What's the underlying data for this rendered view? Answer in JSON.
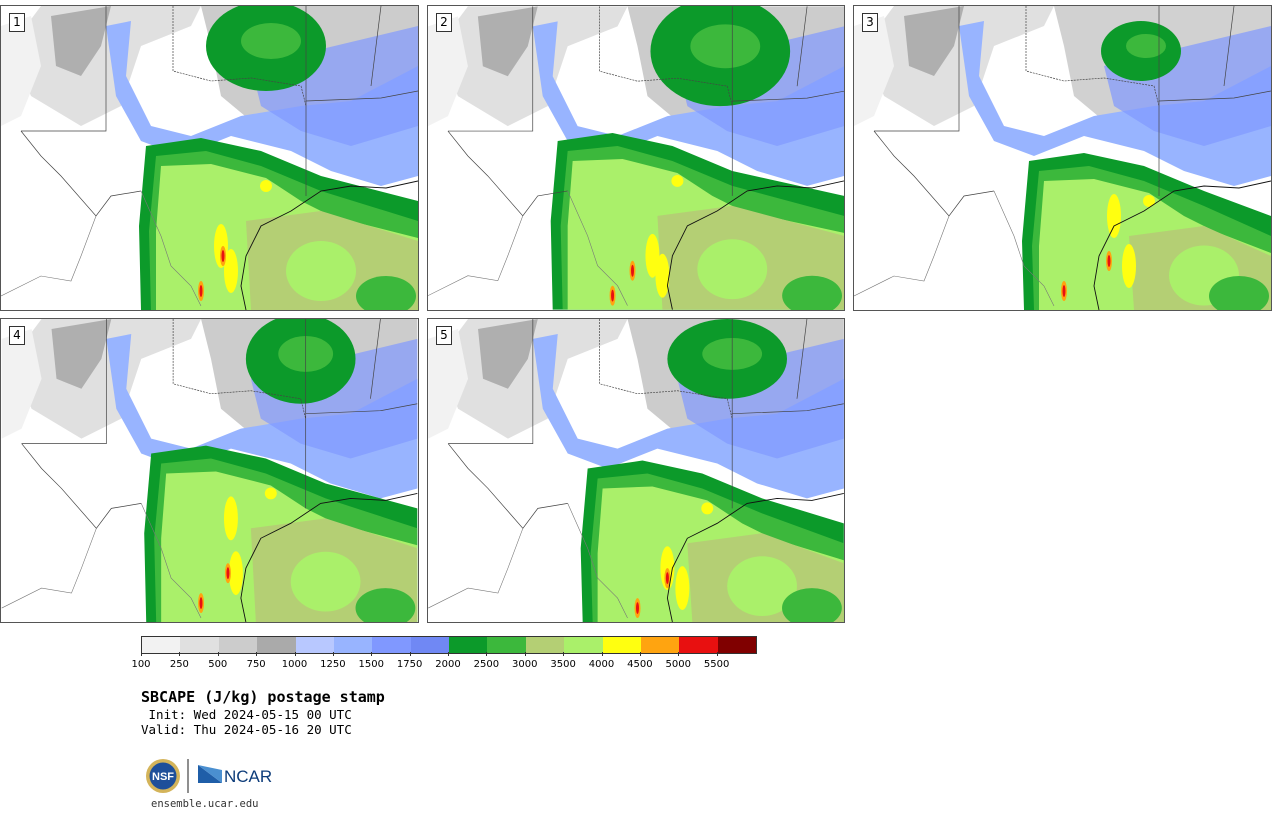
{
  "panels": [
    {
      "label": "1"
    },
    {
      "label": "2"
    },
    {
      "label": "3"
    },
    {
      "label": "4"
    },
    {
      "label": "5"
    }
  ],
  "colorbar": {
    "colors": [
      "#f2f2f2",
      "#e0e0e0",
      "#cccccc",
      "#aaaaaa",
      "#b8c8ff",
      "#98b4ff",
      "#8098ff",
      "#7088f4",
      "#0c9a2a",
      "#3cb83c",
      "#b4cf74",
      "#aaf06a",
      "#ffff10",
      "#ffa410",
      "#e81010",
      "#800000"
    ],
    "tick_labels": [
      "100",
      "250",
      "500",
      "750",
      "1000",
      "1250",
      "1500",
      "1750",
      "2000",
      "2500",
      "3000",
      "3500",
      "4000",
      "4500",
      "5000",
      "5500"
    ]
  },
  "title": "SBCAPE (J/kg) postage stamp",
  "init": " Init: Wed 2024-05-15 00 UTC",
  "valid": "Valid: Thu 2024-05-16 20 UTC",
  "logos": {
    "nsf": "NSF",
    "ncar": "NCAR"
  },
  "site": "ensemble.ucar.edu"
}
